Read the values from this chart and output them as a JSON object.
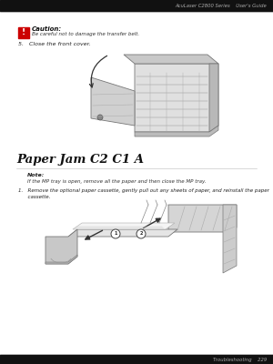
{
  "bg_color": "#ffffff",
  "header_bar_color": "#111111",
  "header_text": "AcuLaser C2800 Series    User's Guide",
  "header_text_color": "#aaaaaa",
  "footer_bar_color": "#111111",
  "footer_text": "Troubleshooting    229",
  "footer_text_color": "#aaaaaa",
  "caution_icon_color": "#cc0000",
  "caution_title": "Caution:",
  "caution_body": "Be careful not to damage the transfer belt.",
  "step5_text": "5.   Close the front cover.",
  "section_title": "Paper Jam C2 C1 A",
  "note_title": "Note:",
  "note_body": "If the MP tray is open, remove all the paper and then close the MP tray.",
  "step1_line1": "1.   Remove the optional paper cassette, gently pull out any sheets of paper, and reinstall the paper",
  "step1_line2": "      cassette."
}
